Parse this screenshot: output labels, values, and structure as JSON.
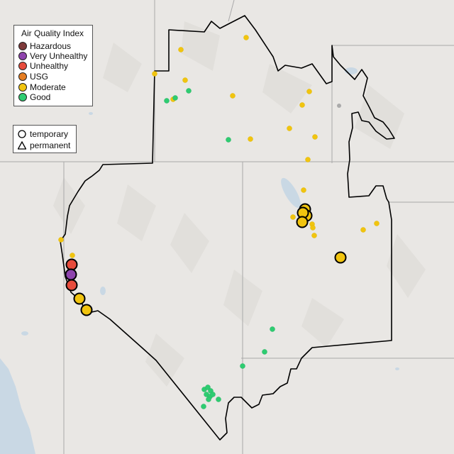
{
  "legend": {
    "title": "Air Quality Index",
    "items": [
      {
        "label": "Hazardous",
        "color": "#7e3a3a"
      },
      {
        "label": "Very Unhealthy",
        "color": "#8e44ad"
      },
      {
        "label": "Unhealthy",
        "color": "#e74c3c"
      },
      {
        "label": "USG",
        "color": "#e67e22"
      },
      {
        "label": "Moderate",
        "color": "#f1c40f"
      },
      {
        "label": "Good",
        "color": "#2ecc71"
      }
    ]
  },
  "type_legend": {
    "items": [
      {
        "label": "temporary",
        "shape": "circle"
      },
      {
        "label": "permanent",
        "shape": "triangle"
      }
    ]
  },
  "colors": {
    "land": "#e9e7e4",
    "water": "#c9d8e4",
    "state_border": "#a9a9a9",
    "region_border": "#000000"
  }
}
